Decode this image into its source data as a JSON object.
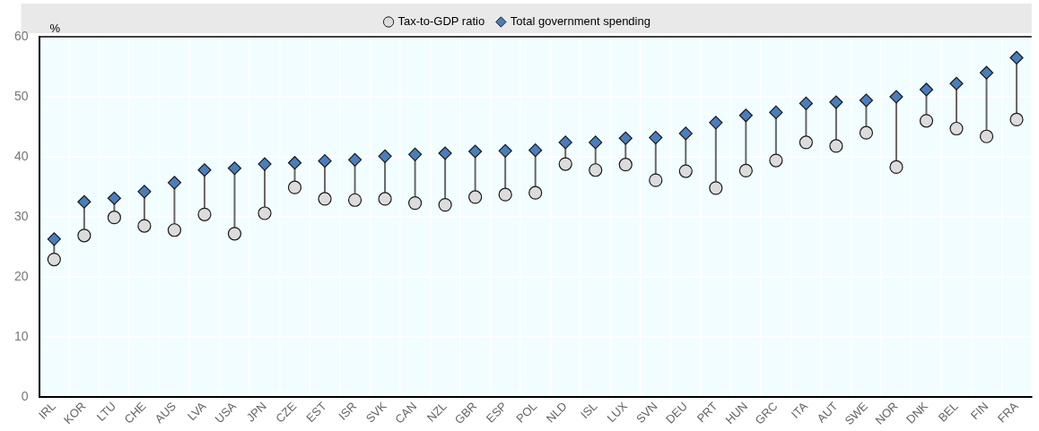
{
  "chart_data": {
    "type": "scatter",
    "ylabel": "%",
    "legend": "top",
    "grid": true,
    "categories": [
      "IRL",
      "KOR",
      "LTU",
      "CHE",
      "AUS",
      "LVA",
      "USA",
      "JPN",
      "CZE",
      "EST",
      "ISR",
      "SVK",
      "CAN",
      "NZL",
      "GBR",
      "ESP",
      "POL",
      "NLD",
      "ISL",
      "LUX",
      "SVN",
      "DEU",
      "PRT",
      "HUN",
      "GRC",
      "ITA",
      "AUT",
      "SWE",
      "NOR",
      "DNK",
      "BEL",
      "FIN",
      "FRA"
    ],
    "ylim": [
      0,
      60
    ],
    "yticks": [
      0,
      10,
      20,
      30,
      40,
      50,
      60
    ],
    "series": [
      {
        "name": "Total government spending",
        "color": "#4a7ebb",
        "marker": "diamond",
        "values": [
          26.3,
          32.5,
          33.1,
          34.2,
          35.7,
          37.8,
          38.1,
          38.8,
          39.0,
          39.3,
          39.5,
          40.1,
          40.4,
          40.6,
          40.9,
          41.0,
          41.1,
          42.4,
          42.4,
          43.1,
          43.2,
          43.9,
          45.7,
          46.9,
          47.4,
          48.9,
          49.1,
          49.4,
          50.0,
          51.2,
          52.2,
          54.0,
          56.5
        ]
      },
      {
        "name": "Tax-to-GDP ratio",
        "color": "#dcdcdc",
        "marker": "circle",
        "values": [
          22.9,
          26.9,
          29.9,
          28.5,
          27.8,
          30.4,
          27.2,
          30.6,
          34.9,
          33.0,
          32.8,
          33.0,
          32.3,
          32.0,
          33.3,
          33.7,
          34.0,
          38.8,
          37.8,
          38.7,
          36.1,
          37.6,
          34.8,
          37.7,
          39.4,
          42.4,
          41.8,
          44.0,
          38.3,
          46.0,
          44.7,
          43.4,
          46.2
        ]
      }
    ]
  }
}
